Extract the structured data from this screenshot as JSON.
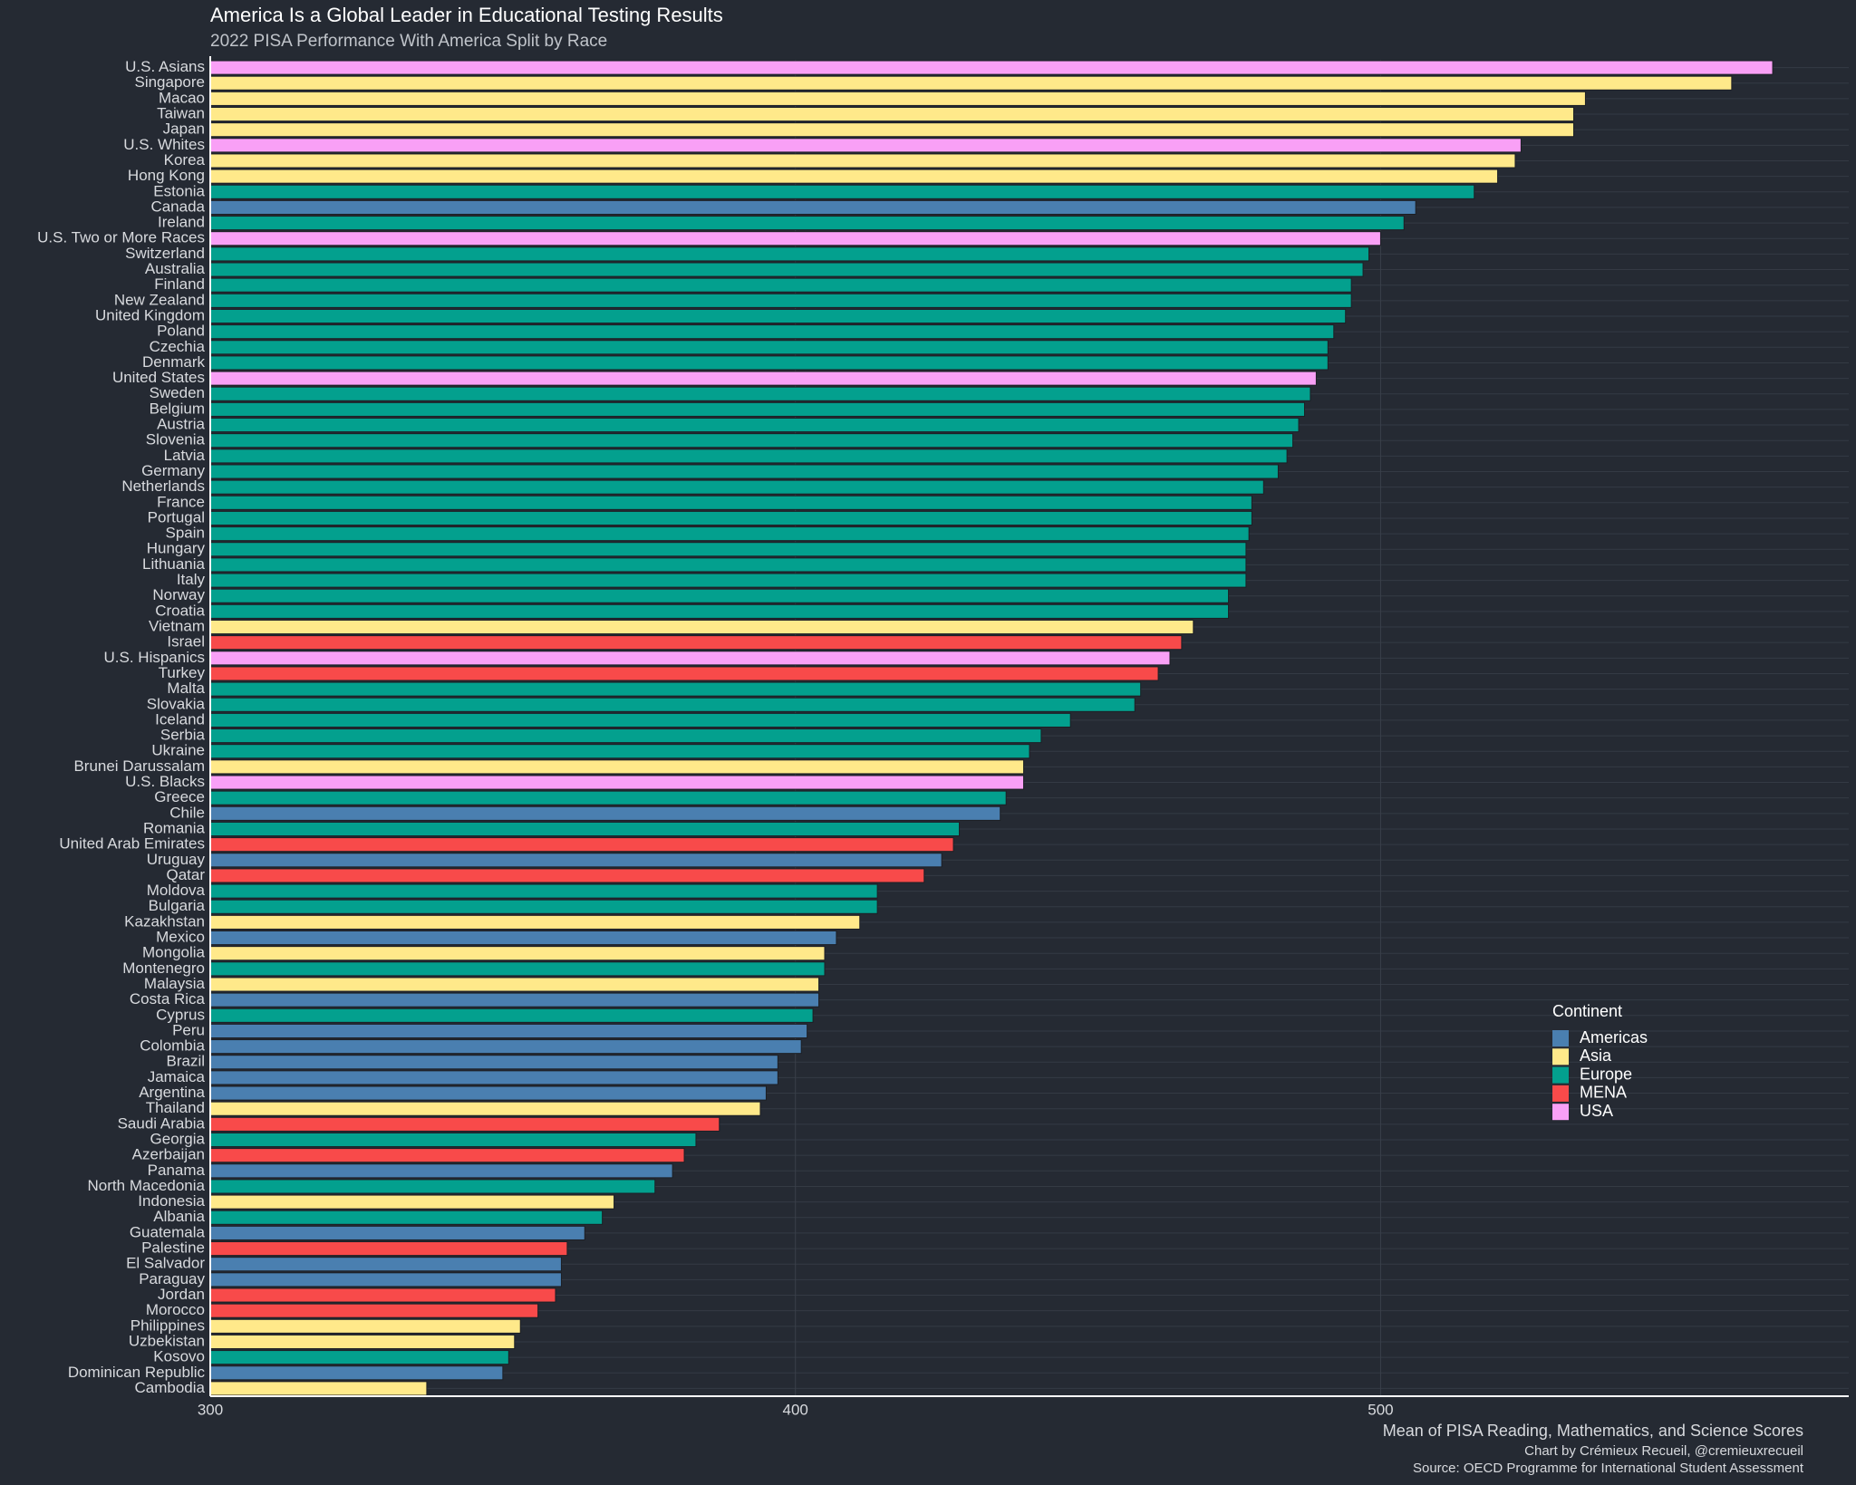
{
  "chart_data": {
    "type": "bar",
    "orientation": "horizontal",
    "title": "America Is a Global Leader in Educational Testing Results",
    "subtitle": "2022 PISA Performance With America Split by Race",
    "x_label": "Mean of PISA Reading, Mathematics, and Science Scores",
    "caption": [
      "Chart by Crémieux Recueil, @cremieuxrecueil",
      "Source: OECD Programme for International Student Assessment"
    ],
    "categories": [
      "U.S. Asians",
      "Singapore",
      "Macao",
      "Taiwan",
      "Japan",
      "U.S. Whites",
      "Korea",
      "Hong Kong",
      "Estonia",
      "Canada",
      "Ireland",
      "U.S. Two or More Races",
      "Switzerland",
      "Australia",
      "Finland",
      "New Zealand",
      "United Kingdom",
      "Poland",
      "Czechia",
      "Denmark",
      "United States",
      "Sweden",
      "Belgium",
      "Austria",
      "Slovenia",
      "Latvia",
      "Germany",
      "Netherlands",
      "France",
      "Portugal",
      "Spain",
      "Hungary",
      "Lithuania",
      "Italy",
      "Norway",
      "Croatia",
      "Vietnam",
      "Israel",
      "U.S. Hispanics",
      "Turkey",
      "Malta",
      "Slovakia",
      "Iceland",
      "Serbia",
      "Ukraine",
      "Brunei Darussalam",
      "U.S. Blacks",
      "Greece",
      "Chile",
      "Romania",
      "United Arab Emirates",
      "Uruguay",
      "Qatar",
      "Moldova",
      "Bulgaria",
      "Kazakhstan",
      "Mexico",
      "Mongolia",
      "Montenegro",
      "Malaysia",
      "Costa Rica",
      "Cyprus",
      "Peru",
      "Colombia",
      "Brazil",
      "Jamaica",
      "Argentina",
      "Thailand",
      "Saudi Arabia",
      "Georgia",
      "Azerbaijan",
      "Panama",
      "North Macedonia",
      "Indonesia",
      "Albania",
      "Guatemala",
      "Palestine",
      "El Salvador",
      "Paraguay",
      "Jordan",
      "Morocco",
      "Philippines",
      "Uzbekistan",
      "Kosovo",
      "Dominican Republic",
      "Cambodia"
    ],
    "values": [
      567,
      560,
      535,
      533,
      533,
      524,
      523,
      520,
      516,
      506,
      504,
      500,
      498,
      497,
      495,
      495,
      494,
      492,
      491,
      491,
      489,
      488,
      487,
      486,
      485,
      484,
      482.5,
      480,
      478,
      478,
      477.5,
      477,
      477,
      477,
      474,
      474,
      468,
      466,
      464,
      462,
      459,
      458,
      447,
      442,
      440,
      439,
      439,
      436,
      435,
      428,
      427,
      425,
      422,
      414,
      414,
      411,
      407,
      405,
      405,
      404,
      404,
      403,
      402,
      401,
      397,
      397,
      395,
      394,
      387,
      383,
      381,
      379,
      376,
      369,
      367,
      364,
      361,
      360,
      360,
      359,
      356,
      353,
      352,
      351,
      350,
      337
    ],
    "continent": [
      "USA",
      "Asia",
      "Asia",
      "Asia",
      "Asia",
      "USA",
      "Asia",
      "Asia",
      "Europe",
      "Americas",
      "Europe",
      "USA",
      "Europe",
      "Europe",
      "Europe",
      "Europe",
      "Europe",
      "Europe",
      "Europe",
      "Europe",
      "USA",
      "Europe",
      "Europe",
      "Europe",
      "Europe",
      "Europe",
      "Europe",
      "Europe",
      "Europe",
      "Europe",
      "Europe",
      "Europe",
      "Europe",
      "Europe",
      "Europe",
      "Europe",
      "Asia",
      "MENA",
      "USA",
      "MENA",
      "Europe",
      "Europe",
      "Europe",
      "Europe",
      "Europe",
      "Asia",
      "USA",
      "Europe",
      "Americas",
      "Europe",
      "MENA",
      "Americas",
      "MENA",
      "Europe",
      "Europe",
      "Asia",
      "Americas",
      "Asia",
      "Europe",
      "Asia",
      "Americas",
      "Europe",
      "Americas",
      "Americas",
      "Americas",
      "Americas",
      "Americas",
      "Asia",
      "MENA",
      "Europe",
      "MENA",
      "Americas",
      "Europe",
      "Asia",
      "Europe",
      "Americas",
      "MENA",
      "Americas",
      "Americas",
      "MENA",
      "MENA",
      "Asia",
      "Asia",
      "Europe",
      "Americas",
      "Asia"
    ],
    "legend": {
      "title": "Continent",
      "entries": [
        {
          "name": "Americas",
          "color": "#4a7fb0"
        },
        {
          "name": "Asia",
          "color": "#ffe98a"
        },
        {
          "name": "Europe",
          "color": "#03a08e"
        },
        {
          "name": "MENA",
          "color": "#f84a4a"
        },
        {
          "name": "USA",
          "color": "#f9a0f6"
        }
      ]
    },
    "xlim": [
      300,
      580
    ],
    "xticks": [
      300,
      400,
      500
    ],
    "grid": true
  }
}
